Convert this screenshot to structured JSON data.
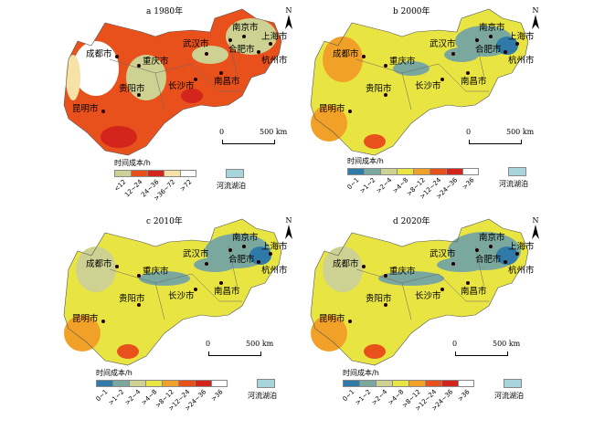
{
  "panels": [
    {
      "title": "a 1980年",
      "palette": "a",
      "colors": [
        "#cdd191",
        "#e8511c",
        "#d3251b",
        "#f6e1a6",
        "#ffffff"
      ],
      "classes": [
        "<12",
        "12~24",
        "24~36",
        ">36~72",
        ">72"
      ]
    },
    {
      "title": "b 2000年",
      "palette": "b",
      "colors": [
        "#2f7aa8",
        "#7ba89e",
        "#cdd191",
        "#e8e442",
        "#f1a128",
        "#e8511c",
        "#d3251b",
        "#ffffff"
      ],
      "classes": [
        "0~1",
        ">1~2",
        ">2~4",
        ">4~8",
        ">8~12",
        ">12~24",
        ">24~36",
        ">36"
      ]
    },
    {
      "title": "c 2010年",
      "palette": "b",
      "colors": [
        "#2f7aa8",
        "#7ba89e",
        "#cdd191",
        "#e8e442",
        "#f1a128",
        "#e8511c",
        "#d3251b",
        "#ffffff"
      ],
      "classes": [
        "0~1",
        ">1~2",
        ">2~4",
        ">4~8",
        ">8~12",
        ">12~24",
        ">24~36",
        ">36"
      ]
    },
    {
      "title": "d 2020年",
      "palette": "b",
      "colors": [
        "#2f7aa8",
        "#7ba89e",
        "#cdd191",
        "#e8e442",
        "#f1a128",
        "#e8511c",
        "#d3251b",
        "#ffffff"
      ],
      "classes": [
        "0~1",
        ">1~2",
        ">2~4",
        ">4~8",
        ">8~12",
        ">12~24",
        ">24~36",
        ">36"
      ]
    }
  ],
  "cities": [
    "成都市",
    "重庆市",
    "贵阳市",
    "昆明市",
    "武汉市",
    "合肥市",
    "南京市",
    "上海市",
    "杭州市",
    "南昌市",
    "长沙市"
  ],
  "legend_title": "时间成本/h",
  "river_label": "河流湖泊",
  "river_color": "#a8d4dc",
  "north": "N",
  "scale": {
    "start": "0",
    "end": "500 km"
  }
}
